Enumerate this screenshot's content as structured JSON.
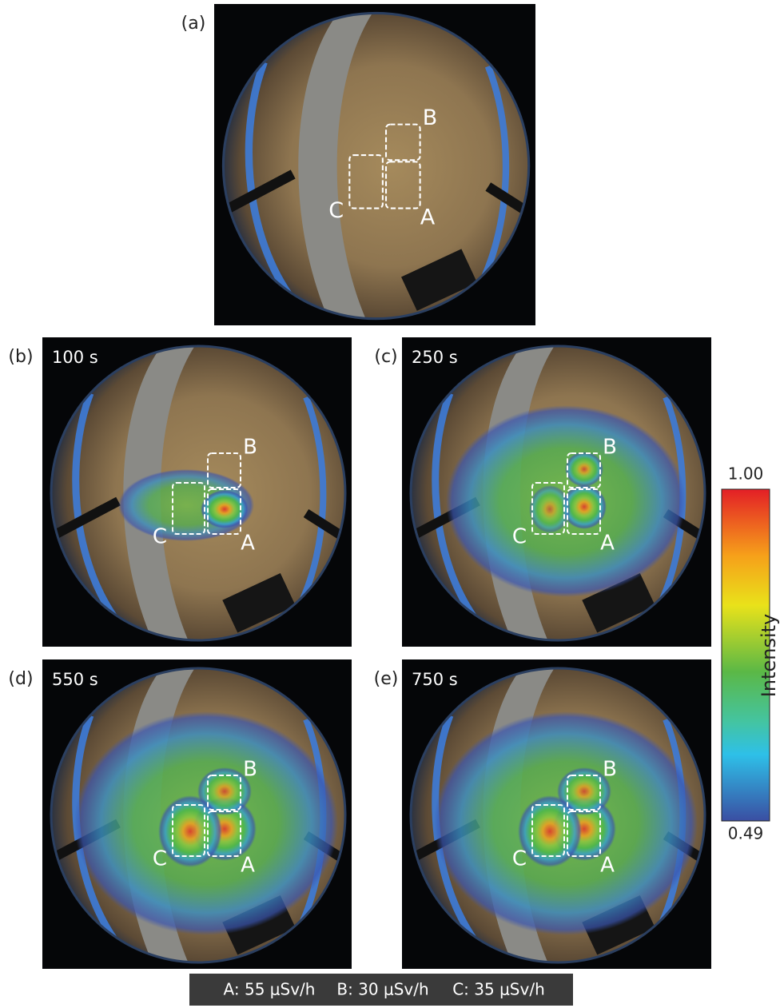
{
  "panels": [
    {
      "label": "(a)"
    },
    {
      "label": "(b)",
      "time": "100 s"
    },
    {
      "label": "(c)",
      "time": "250 s"
    },
    {
      "label": "(d)",
      "time": "550 s"
    },
    {
      "label": "(e)",
      "time": "750 s"
    }
  ],
  "box_labels": [
    "A",
    "B",
    "C"
  ],
  "colorbar": {
    "max": "1.00",
    "min": "0.49",
    "label": "Intensity"
  },
  "legend": [
    "A: 55 μSv/h",
    "B: 30 μSv/h",
    "C: 35 μSv/h"
  ]
}
